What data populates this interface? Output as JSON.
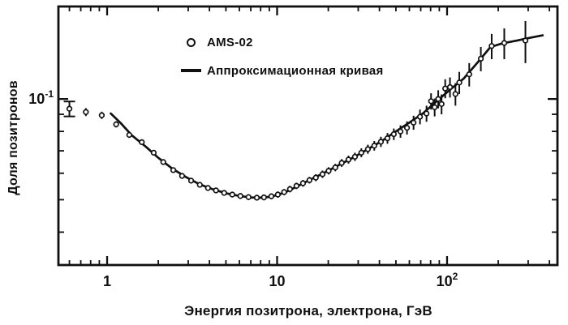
{
  "figure": {
    "background": "#ffffff",
    "ink_color": "#101010"
  },
  "chart_data": {
    "type": "scatter",
    "title": "",
    "xlabel": "Энергия позитрона, электрона, ГэВ",
    "ylabel": "Доля позитронов",
    "x_scale": "log",
    "y_scale": "log",
    "xlim": [
      0.517,
      446
    ],
    "ylim": [
      0.0319,
      0.189
    ],
    "grid": false,
    "legend_position": "top-center-inside",
    "legend": [
      {
        "marker": "open-circle",
        "label": "AMS-02"
      },
      {
        "marker": "line",
        "label": "Аппроксимационная кривая"
      }
    ],
    "x_major_ticks": [
      {
        "value": 1,
        "base": "1",
        "exp": ""
      },
      {
        "value": 10,
        "base": "10",
        "exp": ""
      },
      {
        "value": 100,
        "base": "10",
        "exp": "2"
      }
    ],
    "x_minor_ticks": [
      0.6,
      0.7,
      0.8,
      0.9,
      2,
      3,
      4,
      5,
      6,
      7,
      8,
      9,
      20,
      30,
      40,
      50,
      60,
      70,
      80,
      90,
      200,
      300,
      400
    ],
    "y_major_ticks": [
      {
        "value": 0.1,
        "base": "10",
        "exp": "-1"
      }
    ],
    "y_minor_ticks": [
      0.09,
      0.08,
      0.07,
      0.06,
      0.05,
      0.04
    ],
    "points_format": [
      "energy_GeV",
      "positron_fraction",
      "error"
    ],
    "series": [
      {
        "name": "AMS-02",
        "type": "points",
        "first_point_caps": true,
        "points": [
          [
            0.6,
            0.0935,
            0.0048
          ],
          [
            0.75,
            0.0914,
            0.0025
          ],
          [
            0.93,
            0.0894,
            0.0022
          ],
          [
            1.13,
            0.084,
            0.0018
          ],
          [
            1.35,
            0.0781,
            0.0016
          ],
          [
            1.6,
            0.0743,
            0.0014
          ],
          [
            1.88,
            0.0691,
            0.0013
          ],
          [
            2.14,
            0.0648,
            0.0012
          ],
          [
            2.45,
            0.0613,
            0.0011
          ],
          [
            2.76,
            0.0589,
            0.0011
          ],
          [
            3.12,
            0.057,
            0.001
          ],
          [
            3.51,
            0.0554,
            0.001
          ],
          [
            3.92,
            0.0542,
            0.001
          ],
          [
            4.37,
            0.0533,
            0.001
          ],
          [
            4.88,
            0.0524,
            0.001
          ],
          [
            5.45,
            0.0518,
            0.001
          ],
          [
            6.08,
            0.0513,
            0.001
          ],
          [
            6.79,
            0.0509,
            0.001
          ],
          [
            7.6,
            0.0507,
            0.001
          ],
          [
            8.37,
            0.0508,
            0.001
          ],
          [
            9.25,
            0.0512,
            0.001
          ],
          [
            10.1,
            0.0518,
            0.0011
          ],
          [
            11.0,
            0.0527,
            0.0011
          ],
          [
            11.9,
            0.0538,
            0.0012
          ],
          [
            13.0,
            0.055,
            0.0012
          ],
          [
            14.2,
            0.056,
            0.0013
          ],
          [
            15.5,
            0.0572,
            0.0013
          ],
          [
            16.9,
            0.0582,
            0.0014
          ],
          [
            18.5,
            0.0596,
            0.0015
          ],
          [
            20.1,
            0.061,
            0.0015
          ],
          [
            22.0,
            0.0624,
            0.0016
          ],
          [
            24.0,
            0.0644,
            0.0017
          ],
          [
            26.3,
            0.0659,
            0.0018
          ],
          [
            28.7,
            0.0672,
            0.0019
          ],
          [
            31.3,
            0.0691,
            0.0021
          ],
          [
            34.2,
            0.0708,
            0.0022
          ],
          [
            37.3,
            0.0725,
            0.0024
          ],
          [
            40.8,
            0.0745,
            0.0026
          ],
          [
            44.6,
            0.0763,
            0.0028
          ],
          [
            48.6,
            0.0785,
            0.0031
          ],
          [
            53.2,
            0.08,
            0.0034
          ],
          [
            58.1,
            0.082,
            0.0037
          ],
          [
            63.5,
            0.085,
            0.0041
          ],
          [
            69.3,
            0.0885,
            0.0045
          ],
          [
            75.7,
            0.0905,
            0.005
          ],
          [
            80.5,
            0.0985,
            0.0055
          ],
          [
            84.5,
            0.0945,
            0.0058
          ],
          [
            88.7,
            0.1,
            0.0062
          ],
          [
            92.8,
            0.0966,
            0.0066
          ],
          [
            97.5,
            0.1075,
            0.007
          ],
          [
            104,
            0.1085,
            0.0075
          ],
          [
            112,
            0.1035,
            0.008
          ],
          [
            118,
            0.112,
            0.0085
          ],
          [
            135,
            0.1185,
            0.0095
          ],
          [
            158,
            0.132,
            0.011
          ],
          [
            183,
            0.144,
            0.0125
          ],
          [
            217,
            0.147,
            0.0155
          ],
          [
            289,
            0.1495,
            0.0215
          ]
        ]
      },
      {
        "name": "Аппроксимационная кривая",
        "type": "curve",
        "points": [
          [
            1.05,
            0.0905
          ],
          [
            1.2,
            0.0848
          ],
          [
            1.4,
            0.0778
          ],
          [
            1.7,
            0.0718
          ],
          [
            2.0,
            0.0667
          ],
          [
            2.4,
            0.0621
          ],
          [
            2.9,
            0.0585
          ],
          [
            3.5,
            0.0556
          ],
          [
            4.2,
            0.0537
          ],
          [
            5.0,
            0.0523
          ],
          [
            6.0,
            0.0513
          ],
          [
            7.0,
            0.0508
          ],
          [
            8.0,
            0.0507
          ],
          [
            9.0,
            0.051
          ],
          [
            10.0,
            0.0516
          ],
          [
            11.5,
            0.053
          ],
          [
            13.5,
            0.0552
          ],
          [
            16.0,
            0.0577
          ],
          [
            19.0,
            0.0602
          ],
          [
            23.0,
            0.0634
          ],
          [
            28.0,
            0.0668
          ],
          [
            34.0,
            0.0707
          ],
          [
            41.0,
            0.0747
          ],
          [
            50.0,
            0.08
          ],
          [
            60.0,
            0.085
          ],
          [
            72.0,
            0.0905
          ],
          [
            87.0,
            0.0985
          ],
          [
            105,
            0.107
          ],
          [
            125,
            0.115
          ],
          [
            150,
            0.128
          ],
          [
            180,
            0.143
          ],
          [
            210,
            0.1465
          ],
          [
            250,
            0.149
          ],
          [
            300,
            0.152
          ],
          [
            365,
            0.155
          ]
        ]
      }
    ]
  }
}
